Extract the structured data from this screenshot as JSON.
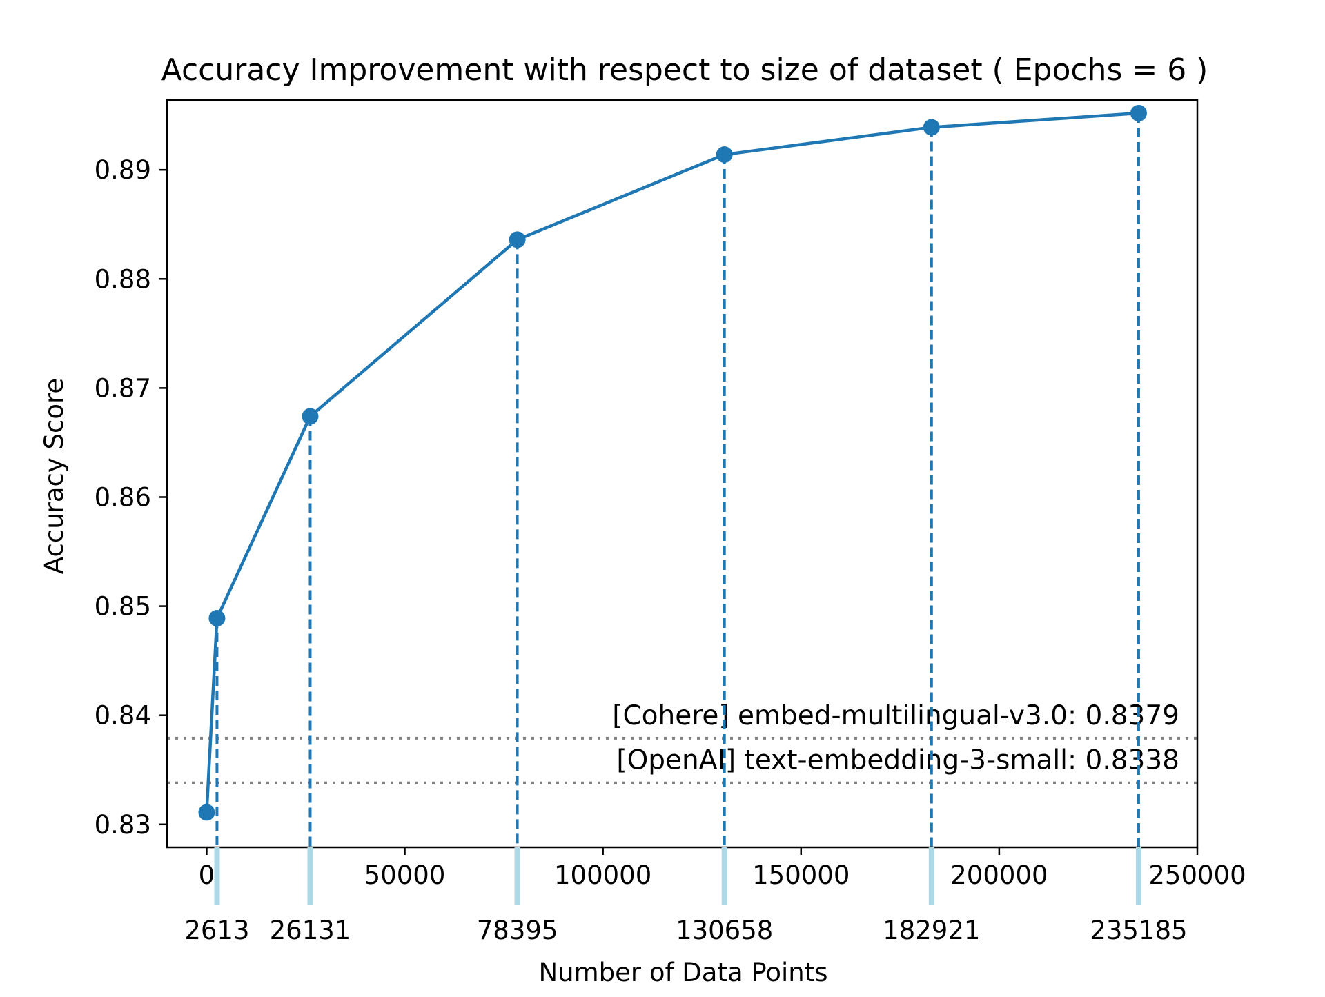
{
  "chart_data": {
    "type": "line",
    "title": "Accuracy Improvement with respect to size of dataset ( Epochs = 6 )",
    "xlabel": "Number of Data Points",
    "ylabel": "Accuracy Score",
    "xlim": [
      -10000,
      250000
    ],
    "ylim": [
      0.8279,
      0.8964
    ],
    "x_ticks": [
      0,
      50000,
      100000,
      150000,
      200000,
      250000
    ],
    "x_tick_labels": [
      "0",
      "50000",
      "100000",
      "150000",
      "200000",
      "250000"
    ],
    "y_ticks": [
      0.83,
      0.84,
      0.85,
      0.86,
      0.87,
      0.88,
      0.89
    ],
    "y_tick_labels": [
      "0.83",
      "0.84",
      "0.85",
      "0.86",
      "0.87",
      "0.88",
      "0.89"
    ],
    "secondary_x_ticks": [
      2613,
      26131,
      78395,
      130658,
      182921,
      235185
    ],
    "secondary_x_tick_labels": [
      "2613",
      "26131",
      "78395",
      "130658",
      "182921",
      "235185"
    ],
    "series": [
      {
        "x": [
          0,
          2613,
          26131,
          78395,
          130658,
          182921,
          235185
        ],
        "y": [
          0.8311,
          0.8489,
          0.8674,
          0.8836,
          0.8914,
          0.8939,
          0.8952
        ]
      }
    ],
    "reference_lines": [
      {
        "label": "[Cohere] embed-multilingual-v3.0: 0.8379",
        "value": 0.8379
      },
      {
        "label": "[OpenAI] text-embedding-3-small: 0.8338",
        "value": 0.8338
      }
    ],
    "grid": false,
    "colors": {
      "series": "#1f77b4",
      "reference": "#808080",
      "secondary_tick": "#add8e6"
    }
  }
}
